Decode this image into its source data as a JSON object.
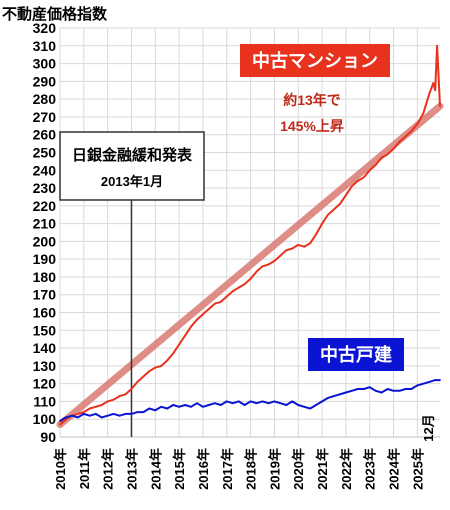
{
  "chart_data": {
    "type": "line",
    "title": "不動産価格指数",
    "ylim": [
      90,
      320
    ],
    "yticks": [
      90,
      100,
      110,
      120,
      130,
      140,
      150,
      160,
      170,
      180,
      190,
      200,
      210,
      220,
      230,
      240,
      250,
      260,
      270,
      280,
      290,
      300,
      310,
      320
    ],
    "xticks": [
      "2010年",
      "2011年",
      "2012年",
      "2013年",
      "2014年",
      "2015年",
      "2016年",
      "2017年",
      "2018年",
      "2019年",
      "2020年",
      "2021年",
      "2022年",
      "2023年",
      "2024年",
      "2025年"
    ],
    "x_end_label": "12月",
    "x_start": 2010,
    "x_end": 2025.95,
    "grid": true,
    "series": [
      {
        "name": "中古マンション",
        "color": "#e8321e",
        "points": [
          [
            2010.0,
            97
          ],
          [
            2010.25,
            100
          ],
          [
            2010.5,
            102
          ],
          [
            2010.75,
            103
          ],
          [
            2011.0,
            104
          ],
          [
            2011.25,
            106
          ],
          [
            2011.5,
            107
          ],
          [
            2011.75,
            108
          ],
          [
            2012.0,
            110
          ],
          [
            2012.25,
            111
          ],
          [
            2012.5,
            113
          ],
          [
            2012.75,
            114
          ],
          [
            2013.0,
            117
          ],
          [
            2013.25,
            121
          ],
          [
            2013.5,
            124
          ],
          [
            2013.75,
            127
          ],
          [
            2014.0,
            129
          ],
          [
            2014.25,
            130
          ],
          [
            2014.5,
            133
          ],
          [
            2014.75,
            137
          ],
          [
            2015.0,
            142
          ],
          [
            2015.25,
            147
          ],
          [
            2015.5,
            152
          ],
          [
            2015.75,
            156
          ],
          [
            2016.0,
            159
          ],
          [
            2016.25,
            162
          ],
          [
            2016.5,
            165
          ],
          [
            2016.75,
            166
          ],
          [
            2017.0,
            169
          ],
          [
            2017.25,
            172
          ],
          [
            2017.5,
            174
          ],
          [
            2017.75,
            176
          ],
          [
            2018.0,
            179
          ],
          [
            2018.25,
            183
          ],
          [
            2018.5,
            186
          ],
          [
            2018.75,
            187
          ],
          [
            2019.0,
            189
          ],
          [
            2019.25,
            192
          ],
          [
            2019.5,
            195
          ],
          [
            2019.75,
            196
          ],
          [
            2020.0,
            198
          ],
          [
            2020.25,
            197
          ],
          [
            2020.5,
            199
          ],
          [
            2020.75,
            204
          ],
          [
            2021.0,
            210
          ],
          [
            2021.25,
            215
          ],
          [
            2021.5,
            218
          ],
          [
            2021.75,
            221
          ],
          [
            2022.0,
            226
          ],
          [
            2022.25,
            231
          ],
          [
            2022.5,
            234
          ],
          [
            2022.75,
            236
          ],
          [
            2023.0,
            240
          ],
          [
            2023.25,
            243
          ],
          [
            2023.5,
            247
          ],
          [
            2023.75,
            249
          ],
          [
            2024.0,
            252
          ],
          [
            2024.25,
            256
          ],
          [
            2024.5,
            259
          ],
          [
            2024.75,
            262
          ],
          [
            2025.0,
            266
          ],
          [
            2025.25,
            272
          ],
          [
            2025.5,
            283
          ],
          [
            2025.67,
            289
          ],
          [
            2025.75,
            285
          ],
          [
            2025.83,
            310
          ],
          [
            2025.95,
            276
          ]
        ]
      },
      {
        "name": "中古戸建",
        "color": "#0a14d2",
        "points": [
          [
            2010.0,
            99
          ],
          [
            2010.25,
            101
          ],
          [
            2010.5,
            102
          ],
          [
            2010.75,
            101
          ],
          [
            2011.0,
            103
          ],
          [
            2011.25,
            102
          ],
          [
            2011.5,
            103
          ],
          [
            2011.75,
            101
          ],
          [
            2012.0,
            102
          ],
          [
            2012.25,
            103
          ],
          [
            2012.5,
            102
          ],
          [
            2012.75,
            103
          ],
          [
            2013.0,
            103
          ],
          [
            2013.25,
            104
          ],
          [
            2013.5,
            104
          ],
          [
            2013.75,
            106
          ],
          [
            2014.0,
            105
          ],
          [
            2014.25,
            107
          ],
          [
            2014.5,
            106
          ],
          [
            2014.75,
            108
          ],
          [
            2015.0,
            107
          ],
          [
            2015.25,
            108
          ],
          [
            2015.5,
            107
          ],
          [
            2015.75,
            109
          ],
          [
            2016.0,
            107
          ],
          [
            2016.25,
            108
          ],
          [
            2016.5,
            109
          ],
          [
            2016.75,
            108
          ],
          [
            2017.0,
            110
          ],
          [
            2017.25,
            109
          ],
          [
            2017.5,
            110
          ],
          [
            2017.75,
            108
          ],
          [
            2018.0,
            110
          ],
          [
            2018.25,
            109
          ],
          [
            2018.5,
            110
          ],
          [
            2018.75,
            109
          ],
          [
            2019.0,
            110
          ],
          [
            2019.25,
            109
          ],
          [
            2019.5,
            108
          ],
          [
            2019.75,
            110
          ],
          [
            2020.0,
            108
          ],
          [
            2020.25,
            107
          ],
          [
            2020.5,
            106
          ],
          [
            2020.75,
            108
          ],
          [
            2021.0,
            110
          ],
          [
            2021.25,
            112
          ],
          [
            2021.5,
            113
          ],
          [
            2021.75,
            114
          ],
          [
            2022.0,
            115
          ],
          [
            2022.25,
            116
          ],
          [
            2022.5,
            117
          ],
          [
            2022.75,
            117
          ],
          [
            2023.0,
            118
          ],
          [
            2023.25,
            116
          ],
          [
            2023.5,
            115
          ],
          [
            2023.75,
            117
          ],
          [
            2024.0,
            116
          ],
          [
            2024.25,
            116
          ],
          [
            2024.5,
            117
          ],
          [
            2024.75,
            117
          ],
          [
            2025.0,
            119
          ],
          [
            2025.25,
            120
          ],
          [
            2025.5,
            121
          ],
          [
            2025.75,
            122
          ],
          [
            2025.95,
            122
          ]
        ]
      }
    ],
    "trendline": {
      "color": "#d97b72",
      "from": [
        2010.0,
        97
      ],
      "to": [
        2025.95,
        276
      ]
    },
    "vline": {
      "x": 2013.0,
      "color": "#333333"
    },
    "annotations": {
      "callout_title": "日銀金融緩和発表",
      "callout_date": "2013年1月",
      "red_label": "中古マンション",
      "red_note_1": "約13年で",
      "red_note_2": "145%上昇",
      "blue_label": "中古戸建"
    }
  }
}
